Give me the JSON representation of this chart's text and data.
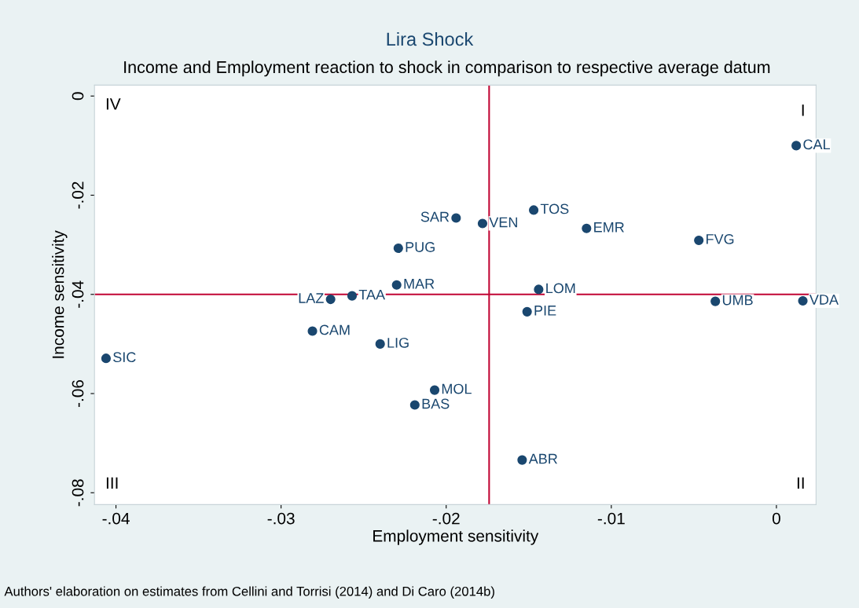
{
  "chart_data": {
    "type": "scatter",
    "title": "Lira Shock",
    "subtitle": "Income and Employment reaction to shock in comparison to respective average datum",
    "xlabel": "Employment sensitivity",
    "ylabel": "Income sensitivity",
    "xlim": [
      -0.0413,
      0.0024
    ],
    "ylim": [
      -0.0824,
      0.0022
    ],
    "xticks": [
      {
        "value": -0.04,
        "label": "-.04"
      },
      {
        "value": -0.03,
        "label": "-.03"
      },
      {
        "value": -0.02,
        "label": "-.02"
      },
      {
        "value": -0.01,
        "label": "-.01"
      },
      0
    ],
    "yticks": [
      {
        "value": -0.08,
        "label": "-.08"
      },
      {
        "value": -0.06,
        "label": "-.06"
      },
      {
        "value": -0.04,
        "label": "-.04"
      },
      {
        "value": -0.02,
        "label": "-.02"
      },
      0
    ],
    "grid": false,
    "legend": false,
    "marker": "circle",
    "series": [
      {
        "name": "CAL",
        "color": "#1a476f",
        "x": [
          0.0012
        ],
        "values": [
          -0.01
        ]
      },
      {
        "name": "TOS",
        "color": "#1a476f",
        "x": [
          -0.0147
        ],
        "values": [
          -0.023
        ]
      },
      {
        "name": "SAR",
        "color": "#1a476f",
        "x": [
          -0.0194
        ],
        "values": [
          -0.0246
        ]
      },
      {
        "name": "VEN",
        "color": "#1a476f",
        "x": [
          -0.0178
        ],
        "values": [
          -0.0257
        ]
      },
      {
        "name": "EMR",
        "color": "#1a476f",
        "x": [
          -0.0115
        ],
        "values": [
          -0.0267
        ]
      },
      {
        "name": "FVG",
        "color": "#1a476f",
        "x": [
          -0.0047
        ],
        "values": [
          -0.0291
        ]
      },
      {
        "name": "PUG",
        "color": "#1a476f",
        "x": [
          -0.0229
        ],
        "values": [
          -0.0307
        ]
      },
      {
        "name": "MAR",
        "color": "#1a476f",
        "x": [
          -0.023
        ],
        "values": [
          -0.0381
        ]
      },
      {
        "name": "LOM",
        "color": "#1a476f",
        "x": [
          -0.0144
        ],
        "values": [
          -0.039
        ]
      },
      {
        "name": "TAA",
        "color": "#1a476f",
        "x": [
          -0.0257
        ],
        "values": [
          -0.0403
        ]
      },
      {
        "name": "LAZ",
        "color": "#1a476f",
        "x": [
          -0.027
        ],
        "values": [
          -0.041
        ]
      },
      {
        "name": "UMB",
        "color": "#1a476f",
        "x": [
          -0.0037
        ],
        "values": [
          -0.0414
        ]
      },
      {
        "name": "VDA",
        "color": "#1a476f",
        "x": [
          0.0016
        ],
        "values": [
          -0.0413
        ]
      },
      {
        "name": "PIE",
        "color": "#1a476f",
        "x": [
          -0.0151
        ],
        "values": [
          -0.0435
        ]
      },
      {
        "name": "CAM",
        "color": "#1a476f",
        "x": [
          -0.0281
        ],
        "values": [
          -0.0474
        ]
      },
      {
        "name": "LIG",
        "color": "#1a476f",
        "x": [
          -0.024
        ],
        "values": [
          -0.05
        ]
      },
      {
        "name": "SIC",
        "color": "#1a476f",
        "x": [
          -0.0406
        ],
        "values": [
          -0.0529
        ]
      },
      {
        "name": "MOL",
        "color": "#1a476f",
        "x": [
          -0.0207
        ],
        "values": [
          -0.0593
        ]
      },
      {
        "name": "BAS",
        "color": "#1a476f",
        "x": [
          -0.0219
        ],
        "values": [
          -0.0623
        ]
      },
      {
        "name": "ABR",
        "color": "#1a476f",
        "x": [
          -0.0154
        ],
        "values": [
          -0.0734
        ]
      }
    ],
    "ref_lines": [
      {
        "axis": "x",
        "value": -0.0174,
        "color": "#c10534"
      },
      {
        "axis": "y",
        "value": -0.04,
        "color": "#c10534"
      }
    ],
    "annotations": [
      "IV",
      "I",
      "III",
      "II",
      "Authors' elaboration on estimates from Cellini and Torrisi (2014) and Di Caro (2014b)"
    ]
  }
}
